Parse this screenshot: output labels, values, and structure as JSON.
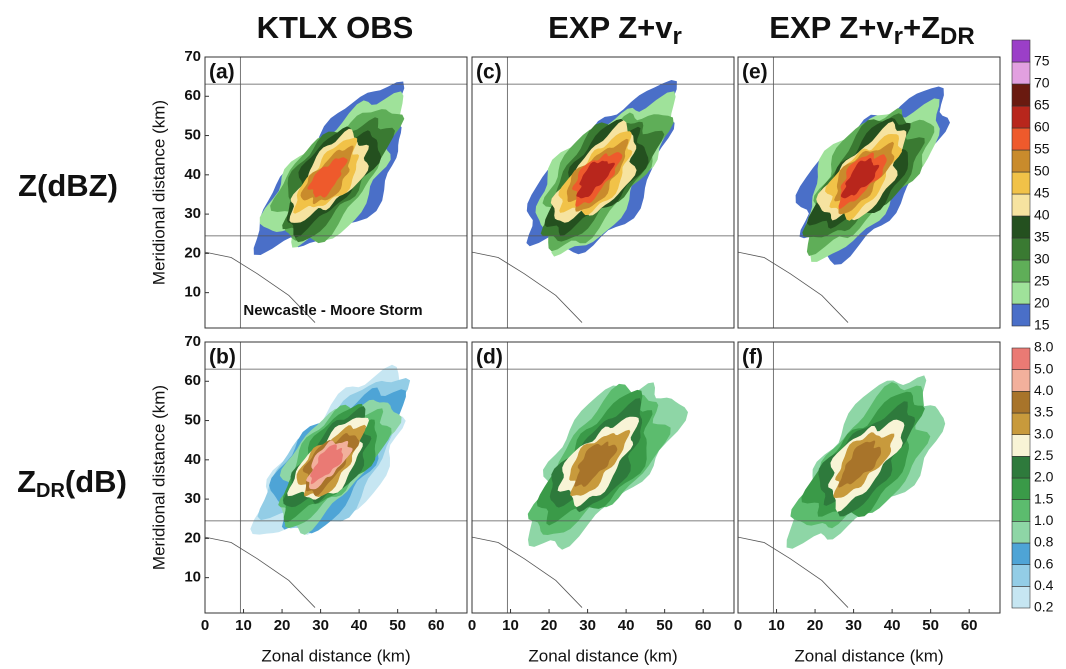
{
  "column_titles": [
    [
      "KTLX OBS"
    ],
    [
      "EXP Z+v",
      "r"
    ],
    [
      "EXP Z+v",
      "r",
      "+Z",
      "DR"
    ]
  ],
  "row_labels": [
    [
      "Z(dBZ)"
    ],
    [
      "Z",
      "DR",
      "(dB)"
    ]
  ],
  "chart_data": [
    {
      "type": "contour",
      "label": "(a)",
      "annotation": "Newcastle - Moore Storm",
      "ylabel": "Meridional distance (km)",
      "xlim": [
        0,
        68
      ],
      "ylim": [
        1,
        70
      ],
      "yticks": [
        10,
        20,
        30,
        40,
        50,
        60,
        70
      ],
      "colorbar": 0
    },
    {
      "type": "contour",
      "label": "(c)",
      "xlim": [
        0,
        68
      ],
      "ylim": [
        1,
        70
      ],
      "colorbar": 0
    },
    {
      "type": "contour",
      "label": "(e)",
      "xlim": [
        0,
        68
      ],
      "ylim": [
        1,
        70
      ],
      "colorbar": 0
    },
    {
      "type": "contour",
      "label": "(b)",
      "ylabel": "Meridional distance (km)",
      "xlabel": "Zonal distance (km)",
      "xlim": [
        0,
        68
      ],
      "ylim": [
        1,
        70
      ],
      "xticks": [
        0,
        10,
        20,
        30,
        40,
        50,
        60
      ],
      "yticks": [
        10,
        20,
        30,
        40,
        50,
        60,
        70
      ],
      "colorbar": 1
    },
    {
      "type": "contour",
      "label": "(d)",
      "xlabel": "Zonal distance (km)",
      "xlim": [
        0,
        68
      ],
      "ylim": [
        1,
        70
      ],
      "xticks": [
        0,
        10,
        20,
        30,
        40,
        50,
        60
      ],
      "colorbar": 1
    },
    {
      "type": "contour",
      "label": "(f)",
      "xlabel": "Zonal distance (km)",
      "xlim": [
        0,
        68
      ],
      "ylim": [
        1,
        70
      ],
      "xticks": [
        0,
        10,
        20,
        30,
        40,
        50,
        60
      ],
      "colorbar": 1
    }
  ],
  "colorbars": [
    {
      "levels": [
        15,
        20,
        25,
        30,
        35,
        40,
        45,
        50,
        55,
        60,
        65,
        70,
        75
      ],
      "colors": [
        "#4a6fc8",
        "#9fe29a",
        "#5fae58",
        "#3a7a32",
        "#24501f",
        "#f6e3a0",
        "#f1c248",
        "#c98b2c",
        "#ee5a2c",
        "#b8261c",
        "#6a1a10",
        "#e2a0e0",
        "#9b3fc8"
      ]
    },
    {
      "levels": [
        0.2,
        0.4,
        0.6,
        0.8,
        {
          "value": 1,
          "label": "1.0"
        },
        1.5,
        {
          "value": 2,
          "label": "2.0"
        },
        2.5,
        {
          "value": 3,
          "label": "3.0"
        },
        3.5,
        {
          "value": 4,
          "label": "4.0"
        },
        {
          "value": 5,
          "label": "5.0"
        },
        {
          "value": 8,
          "label": "8.0"
        }
      ],
      "colors": [
        "#c6e6f2",
        "#93cde6",
        "#4ea4d6",
        "#8ed6a6",
        "#5cbc6e",
        "#3a9a48",
        "#2e7a3c",
        "#f8f4d6",
        "#c89a3c",
        "#a8742a",
        "#f2b09c",
        "#ea7a74"
      ]
    }
  ]
}
